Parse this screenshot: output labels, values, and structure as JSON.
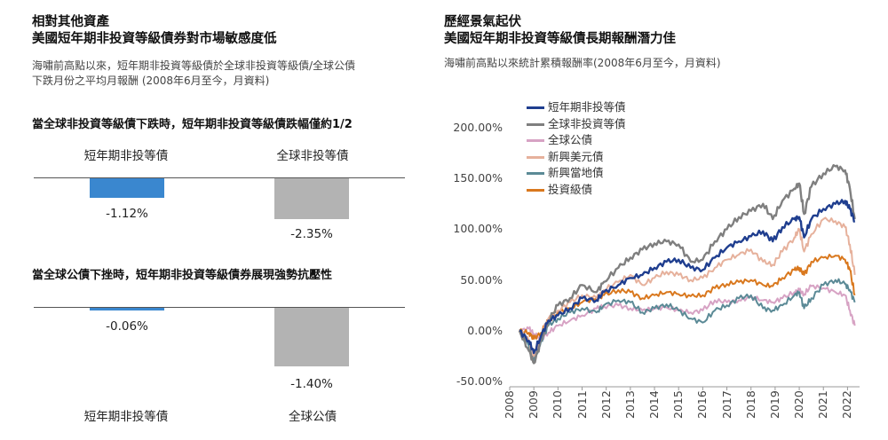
{
  "left": {
    "title_line1": "相對其他資產",
    "title_line2": "美國短年期非投資等級債券對市場敏感度低",
    "subtitle_line1": "海嘯前高點以來，短年期非投資等級債於全球非投資等級債/全球公債",
    "subtitle_line2": "下跌月份之平均月報酬 (2008年6月至今，月資料)",
    "colors": {
      "short_hy": "#3a87cf",
      "other": "#b3b3b3",
      "axis": "#555555"
    }
  },
  "right": {
    "title_line1": "歷經景氣起伏",
    "title_line2": "美國短年期非投資等級債長期報酬潛力佳",
    "subtitle": "海嘯前高點以來統計累積報酬率(2008年6月至今，月資料)"
  },
  "chart_data": [
    {
      "type": "bar",
      "title": "當全球非投資等級債下跌時，短年期非投資等級債跌幅僅約1/2",
      "categories": [
        "短年期非投等債",
        "全球非投等債"
      ],
      "values": [
        -1.12,
        -2.35
      ],
      "value_labels": [
        "-1.12%",
        "-2.35%"
      ],
      "ylim": [
        -2.6,
        0
      ],
      "colors": [
        "#3a87cf",
        "#b3b3b3"
      ]
    },
    {
      "type": "bar",
      "title": "當全球公債下挫時，短年期非投資等級債券展現強勢抗壓性",
      "categories": [
        "短年期非投等債",
        "全球公債"
      ],
      "values": [
        -0.06,
        -1.4
      ],
      "value_labels": [
        "-0.06%",
        "-1.40%"
      ],
      "ylim": [
        -1.6,
        0
      ],
      "colors": [
        "#3a87cf",
        "#b3b3b3"
      ]
    },
    {
      "type": "line",
      "x": [
        2008.4,
        2008.8,
        2009.0,
        2009.3,
        2009.6,
        2010.0,
        2010.5,
        2011.0,
        2011.6,
        2011.9,
        2012.5,
        2013.0,
        2013.5,
        2014.0,
        2014.5,
        2015.0,
        2015.5,
        2016.0,
        2016.5,
        2017.0,
        2017.5,
        2018.0,
        2018.5,
        2018.9,
        2019.3,
        2019.8,
        2020.0,
        2020.2,
        2020.5,
        2021.0,
        2021.5,
        2021.9,
        2022.1,
        2022.3
      ],
      "xticks": [
        "2008",
        "2009",
        "2010",
        "2011",
        "2012",
        "2013",
        "2014",
        "2015",
        "2016",
        "2017",
        "2018",
        "2019",
        "2020",
        "2021",
        "2022"
      ],
      "xlim": [
        2008,
        2022.5
      ],
      "ylim": [
        -50,
        200
      ],
      "yticks": [
        -50,
        0,
        50,
        100,
        150,
        200
      ],
      "ytick_labels": [
        "-50.00%",
        "0.00%",
        "50.00%",
        "100.00%",
        "150.00%",
        "200.00%"
      ],
      "legend_position": "top",
      "series": [
        {
          "name": "短年期非投等債",
          "color": "#1f3e8f",
          "values": [
            0,
            -10,
            -22,
            -5,
            10,
            15,
            22,
            32,
            30,
            38,
            45,
            52,
            55,
            62,
            68,
            70,
            62,
            60,
            72,
            82,
            88,
            93,
            98,
            88,
            102,
            110,
            112,
            92,
            110,
            120,
            125,
            128,
            120,
            108
          ]
        },
        {
          "name": "全球非投資等債",
          "color": "#7f7f7f",
          "values": [
            0,
            -20,
            -32,
            -10,
            10,
            25,
            32,
            45,
            38,
            48,
            62,
            72,
            80,
            86,
            88,
            85,
            68,
            70,
            88,
            100,
            112,
            118,
            125,
            110,
            128,
            140,
            145,
            115,
            142,
            155,
            162,
            158,
            140,
            110
          ]
        },
        {
          "name": "全球公債",
          "color": "#d7a3c4",
          "values": [
            0,
            2,
            -3,
            -8,
            -2,
            5,
            10,
            15,
            22,
            24,
            25,
            22,
            20,
            22,
            23,
            20,
            18,
            20,
            30,
            28,
            30,
            33,
            30,
            28,
            32,
            38,
            40,
            36,
            44,
            42,
            38,
            35,
            20,
            5
          ]
        },
        {
          "name": "新興美元債",
          "color": "#e6b19c",
          "values": [
            0,
            -10,
            -25,
            -5,
            12,
            20,
            28,
            35,
            32,
            40,
            48,
            55,
            45,
            52,
            58,
            55,
            50,
            52,
            62,
            70,
            75,
            80,
            68,
            65,
            78,
            92,
            100,
            78,
            95,
            110,
            108,
            102,
            85,
            55
          ]
        },
        {
          "name": "新興當地債",
          "color": "#5b8a96",
          "values": [
            0,
            -15,
            -30,
            -10,
            5,
            12,
            18,
            22,
            18,
            25,
            30,
            28,
            18,
            22,
            26,
            20,
            12,
            8,
            20,
            25,
            32,
            35,
            22,
            20,
            25,
            35,
            38,
            22,
            32,
            45,
            50,
            46,
            40,
            28
          ]
        },
        {
          "name": "投資級債",
          "color": "#d9781e",
          "values": [
            0,
            -2,
            -8,
            -2,
            10,
            18,
            22,
            28,
            32,
            35,
            40,
            38,
            32,
            35,
            38,
            36,
            34,
            35,
            42,
            46,
            48,
            50,
            45,
            44,
            52,
            60,
            62,
            55,
            68,
            72,
            74,
            70,
            60,
            35
          ]
        }
      ]
    }
  ]
}
